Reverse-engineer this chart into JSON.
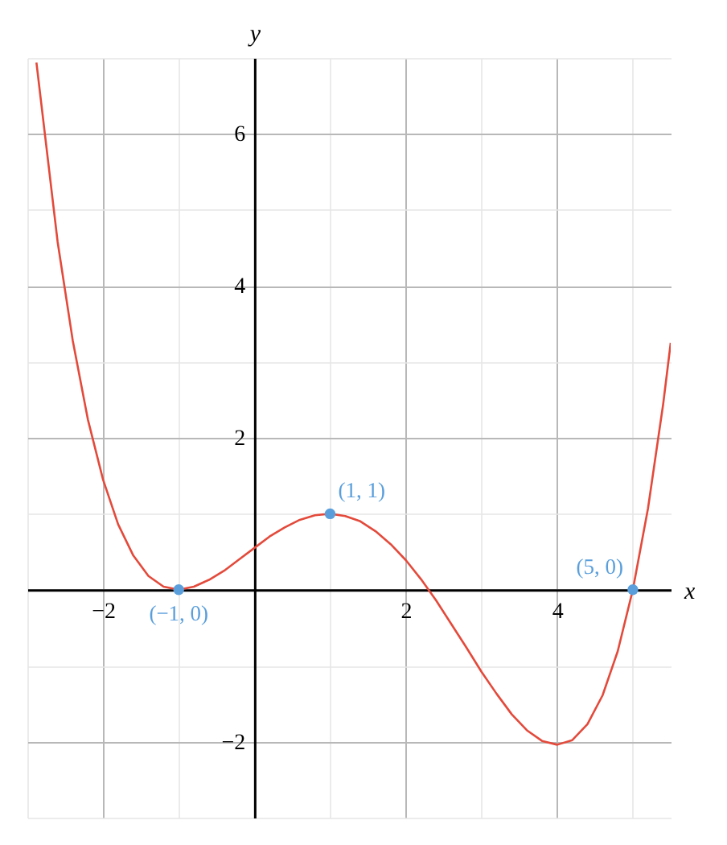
{
  "chart_data": {
    "type": "line",
    "xlabel": "x",
    "ylabel": "y",
    "xlim": [
      -3,
      5.5
    ],
    "ylim": [
      -3,
      7
    ],
    "xticks": [
      -2,
      2,
      4
    ],
    "yticks": [
      -2,
      2,
      4,
      6
    ],
    "grid": true,
    "series": [
      {
        "color": "#e34a3b",
        "x": [
          -2.88,
          -2.6,
          -2.4,
          -2.2,
          -2.0,
          -1.8,
          -1.6,
          -1.4,
          -1.2,
          -1.0,
          -0.8,
          -0.6,
          -0.4,
          -0.2,
          0,
          0.2,
          0.4,
          0.6,
          0.8,
          1.0,
          1.2,
          1.4,
          1.6,
          1.8,
          2.0,
          2.2,
          2.4,
          2.6,
          2.8,
          3.0,
          3.2,
          3.4,
          3.6,
          3.8,
          4.0,
          4.2,
          4.4,
          4.6,
          4.8,
          5.0,
          5.2,
          5.4,
          5.5
        ],
        "values": [
          6.94,
          4.58,
          3.28,
          2.24,
          1.45,
          0.86,
          0.45,
          0.18,
          0.04,
          0,
          0.04,
          0.13,
          0.25,
          0.4,
          0.55,
          0.7,
          0.82,
          0.92,
          0.98,
          1,
          0.97,
          0.9,
          0.77,
          0.6,
          0.39,
          0.14,
          -0.14,
          -0.45,
          -0.76,
          -1.08,
          -1.37,
          -1.64,
          -1.85,
          -1.99,
          -2.04,
          -1.98,
          -1.77,
          -1.39,
          -0.81,
          0,
          1.07,
          2.44,
          3.25
        ]
      },
      {
        "type": "scatter",
        "color": "#5a9fdc",
        "marker": "circle",
        "x": [
          -1,
          1,
          5
        ],
        "values": [
          0,
          1,
          0
        ]
      }
    ],
    "annotations": [
      {
        "text": "(−1, 0)",
        "x": -1,
        "y": 0
      },
      {
        "text": "(1, 1)",
        "x": 1,
        "y": 1
      },
      {
        "text": "(5, 0)",
        "x": 5,
        "y": 0
      }
    ]
  }
}
